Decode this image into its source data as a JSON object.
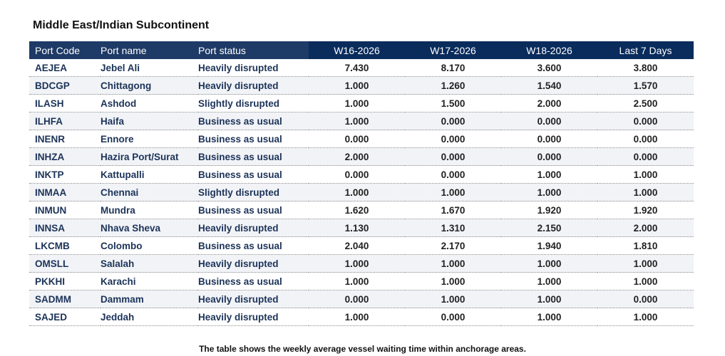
{
  "title": "Middle East/Indian Subcontinent",
  "columns": [
    "Port Code",
    "Port name",
    "Port status",
    "W16-2026",
    "W17-2026",
    "W18-2026",
    "Last 7 Days"
  ],
  "rows": [
    [
      "AEJEA",
      "Jebel Ali",
      "Heavily disrupted",
      "7.430",
      "8.170",
      "3.600",
      "3.800"
    ],
    [
      "BDCGP",
      "Chittagong",
      "Heavily disrupted",
      "1.000",
      "1.260",
      "1.540",
      "1.570"
    ],
    [
      "ILASH",
      "Ashdod",
      "Slightly disrupted",
      "1.000",
      "1.500",
      "2.000",
      "2.500"
    ],
    [
      "ILHFA",
      "Haifa",
      "Business as usual",
      "1.000",
      "0.000",
      "0.000",
      "0.000"
    ],
    [
      "INENR",
      "Ennore",
      "Business as usual",
      "0.000",
      "0.000",
      "0.000",
      "0.000"
    ],
    [
      "INHZA",
      "Hazira Port/Surat",
      "Business as usual",
      "2.000",
      "0.000",
      "0.000",
      "0.000"
    ],
    [
      "INKTP",
      "Kattupalli",
      "Business as usual",
      "0.000",
      "0.000",
      "1.000",
      "1.000"
    ],
    [
      "INMAA",
      "Chennai",
      "Slightly disrupted",
      "1.000",
      "1.000",
      "1.000",
      "1.000"
    ],
    [
      "INMUN",
      "Mundra",
      "Business as usual",
      "1.620",
      "1.670",
      "1.920",
      "1.920"
    ],
    [
      "INNSA",
      "Nhava Sheva",
      "Heavily disrupted",
      "1.130",
      "1.310",
      "2.150",
      "2.000"
    ],
    [
      "LKCMB",
      "Colombo",
      "Business as usual",
      "2.040",
      "2.170",
      "1.940",
      "1.810"
    ],
    [
      "OMSLL",
      "Salalah",
      "Heavily disrupted",
      "1.000",
      "1.000",
      "1.000",
      "1.000"
    ],
    [
      "PKKHI",
      "Karachi",
      "Business as usual",
      "1.000",
      "1.000",
      "1.000",
      "1.000"
    ],
    [
      "SADMM",
      "Dammam",
      "Heavily disrupted",
      "0.000",
      "1.000",
      "1.000",
      "0.000"
    ],
    [
      "SAJED",
      "Jeddah",
      "Heavily disrupted",
      "1.000",
      "0.000",
      "1.000",
      "1.000"
    ]
  ],
  "caption": "The table shows the weekly average vessel waiting time within anchorage areas.",
  "colors": {
    "header_bg": "#1e3a66",
    "header_bg_numeric": "#0a2c5c",
    "header_text": "#ffffff",
    "row_text": "#1c3358",
    "alt_row_bg": "#f1f3f7"
  }
}
